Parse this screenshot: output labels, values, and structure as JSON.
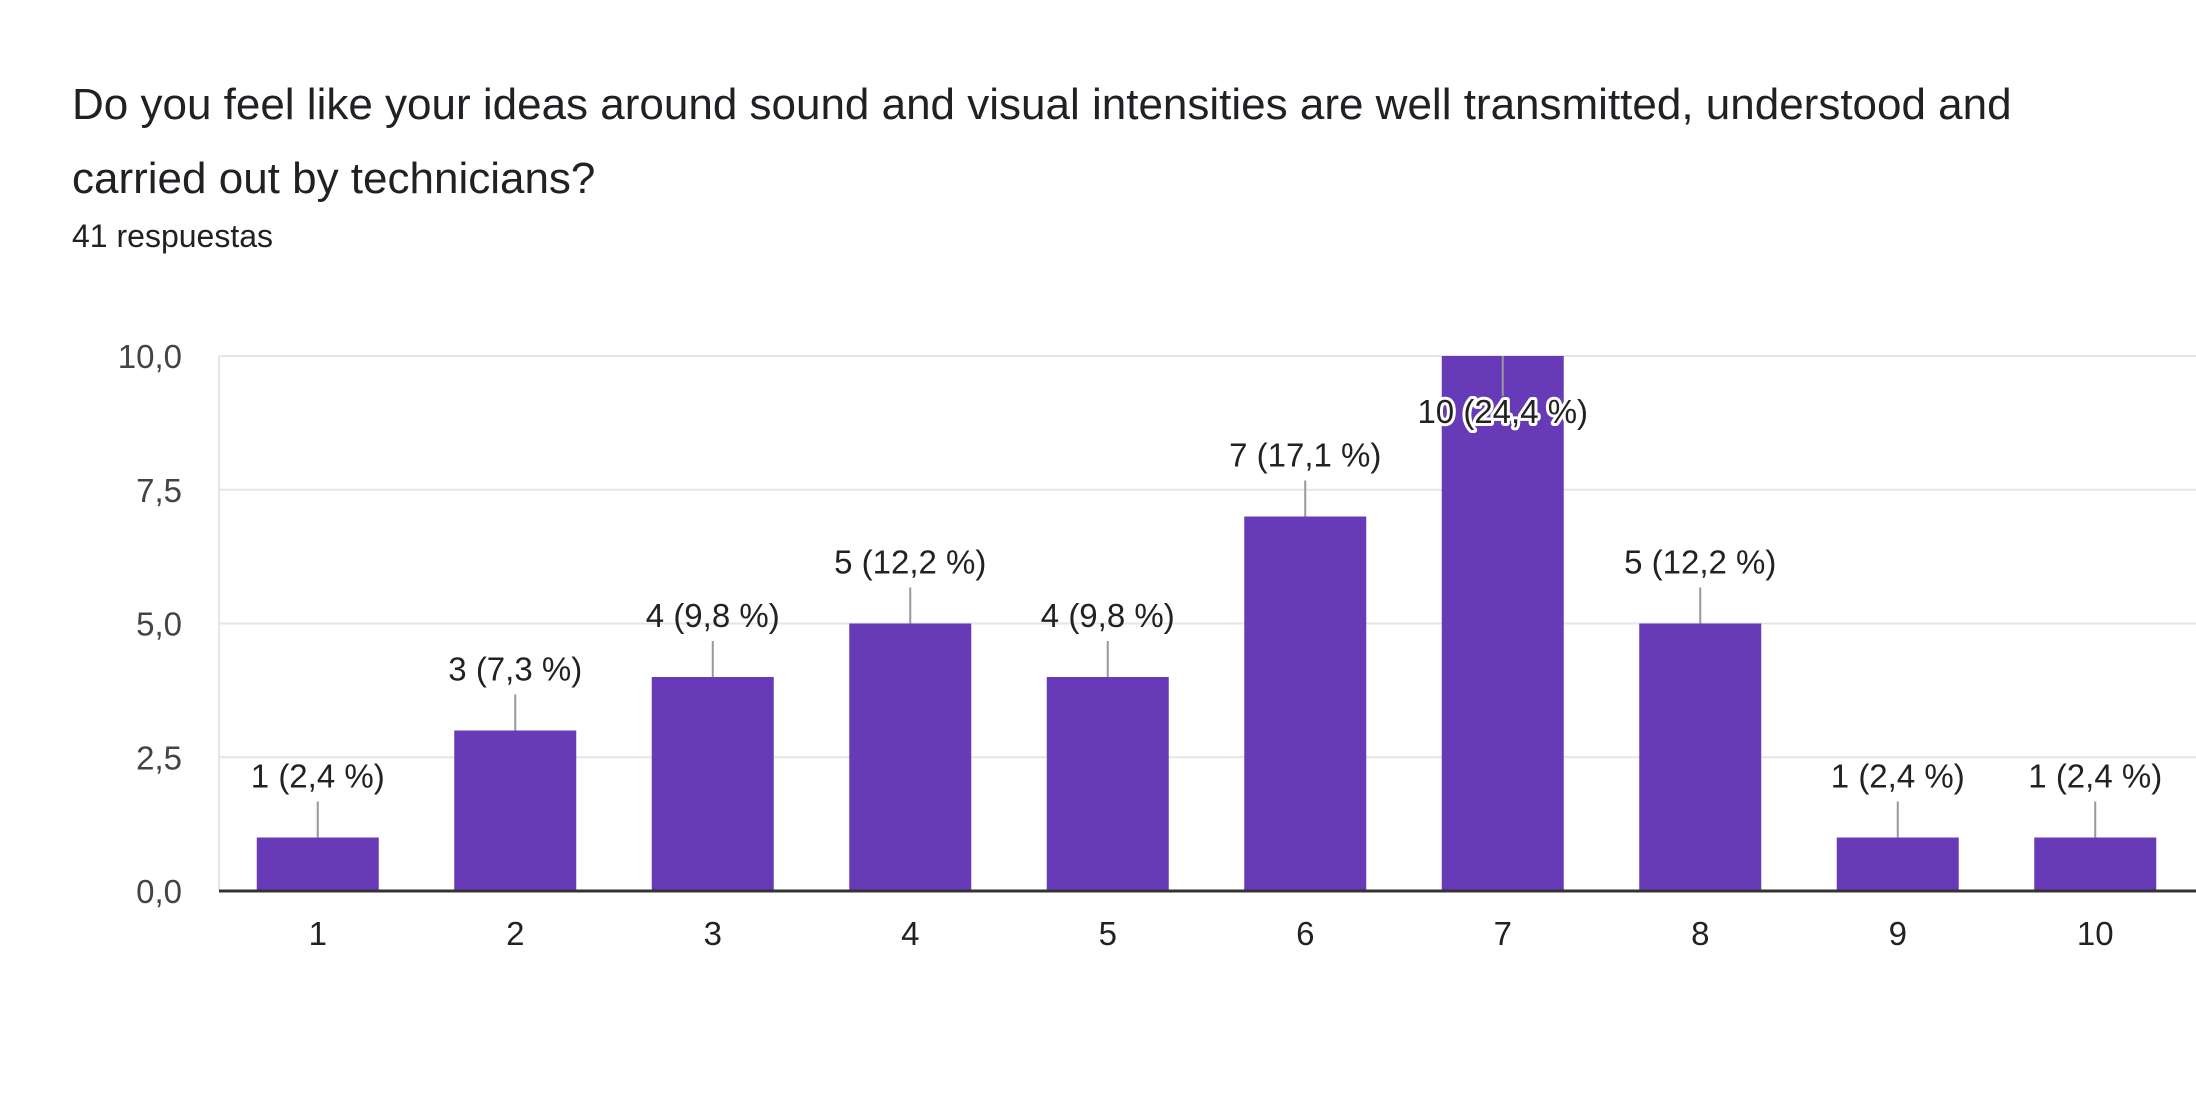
{
  "question": {
    "title": "Do you feel like your ideas around sound and visual intensities are well transmitted, understood and carried out by technicians?",
    "responses": "41 respuestas"
  },
  "chart_data": {
    "type": "bar",
    "categories": [
      "1",
      "2",
      "3",
      "4",
      "5",
      "6",
      "7",
      "8",
      "9",
      "10"
    ],
    "values": [
      1,
      3,
      4,
      5,
      4,
      7,
      10,
      5,
      1,
      1
    ],
    "data_labels": [
      "1 (2,4 %)",
      "3 (7,3 %)",
      "4 (9,8 %)",
      "5 (12,2 %)",
      "4 (9,8 %)",
      "7 (17,1 %)",
      "10 (24,4 %)",
      "5 (12,2 %)",
      "1 (2,4 %)",
      "1 (2,4 %)"
    ],
    "yticks": [
      "0,0",
      "2,5",
      "5,0",
      "7,5",
      "10,0"
    ],
    "ytick_values": [
      0,
      2.5,
      5,
      7.5,
      10
    ],
    "ylim": [
      0,
      10
    ],
    "grid": true,
    "bar_color": "#673ab7",
    "grid_color": "#e6e6e6",
    "axis_color": "#333333",
    "leader_color": "#999999"
  }
}
